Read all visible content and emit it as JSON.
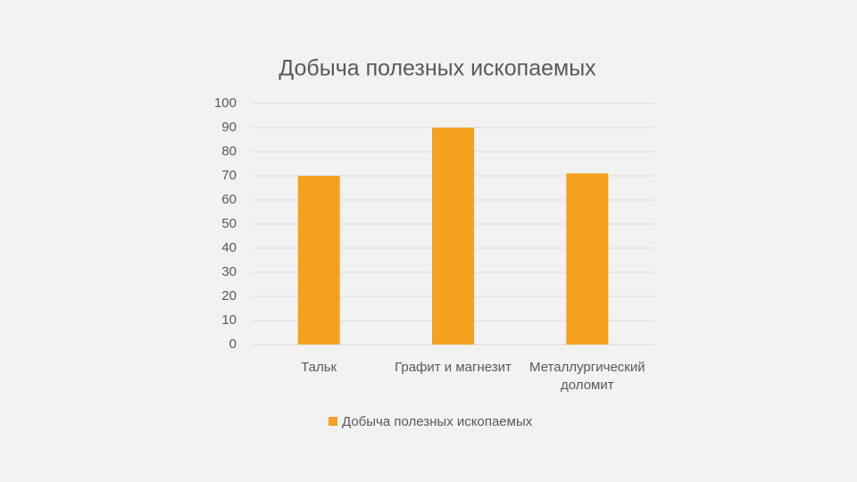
{
  "chart_data": {
    "type": "bar",
    "title": "Добыча полезных ископаемых",
    "categories": [
      "Тальк",
      "Графит и магнезит",
      "Металлургический доломит"
    ],
    "series": [
      {
        "name": "Добыча полезных ископаемых",
        "color": "#f4a11f",
        "values": [
          70,
          90,
          71
        ]
      }
    ],
    "ylim": [
      0,
      100
    ],
    "yticks": [
      0,
      10,
      20,
      30,
      40,
      50,
      60,
      70,
      80,
      90,
      100
    ],
    "grid": true,
    "legend": "bottom"
  }
}
